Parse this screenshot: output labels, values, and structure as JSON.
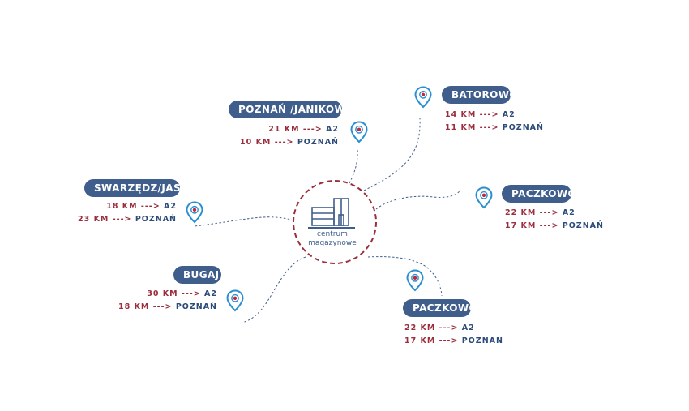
{
  "center": {
    "line1": "centrum",
    "line2": "magazynowe"
  },
  "locations": [
    {
      "name": "POZNAŃ /JANIKOWSKA",
      "rows": [
        {
          "km": "21 KM",
          "arrow": "--->",
          "dest": "A2"
        },
        {
          "km": "10 KM",
          "arrow": "--->",
          "dest": "POZNAŃ"
        }
      ]
    },
    {
      "name": "BATOROWO",
      "rows": [
        {
          "km": "14 KM",
          "arrow": "--->",
          "dest": "A2"
        },
        {
          "km": "11 KM",
          "arrow": "--->",
          "dest": "POZNAŃ"
        }
      ]
    },
    {
      "name": "SWARZĘDZ/JASIN",
      "rows": [
        {
          "km": "18 KM",
          "arrow": "--->",
          "dest": "A2"
        },
        {
          "km": "23 KM",
          "arrow": "--->",
          "dest": "POZNAŃ"
        }
      ]
    },
    {
      "name": "PACZKOWO I",
      "rows": [
        {
          "km": "22 KM",
          "arrow": "--->",
          "dest": "A2"
        },
        {
          "km": "17 KM",
          "arrow": "--->",
          "dest": "POZNAŃ"
        }
      ]
    },
    {
      "name": "BUGAJ",
      "rows": [
        {
          "km": "30 KM",
          "arrow": "--->",
          "dest": "A2"
        },
        {
          "km": "18 KM",
          "arrow": "--->",
          "dest": "POZNAŃ"
        }
      ]
    },
    {
      "name": "PACZKOWO II",
      "rows": [
        {
          "km": "22 KM",
          "arrow": "--->",
          "dest": "A2"
        },
        {
          "km": "17 KM",
          "arrow": "--->",
          "dest": "POZNAŃ"
        }
      ]
    }
  ],
  "colors": {
    "pill": "#3f5e8c",
    "km": "#9b2d3d",
    "dest": "#2c4a7a",
    "pin": "#2a8fd0",
    "circle": "#9b2d3d",
    "line": "#3f5e8c"
  },
  "icons": {
    "pin": "map-pin-icon",
    "center": "warehouse-building-icon"
  }
}
